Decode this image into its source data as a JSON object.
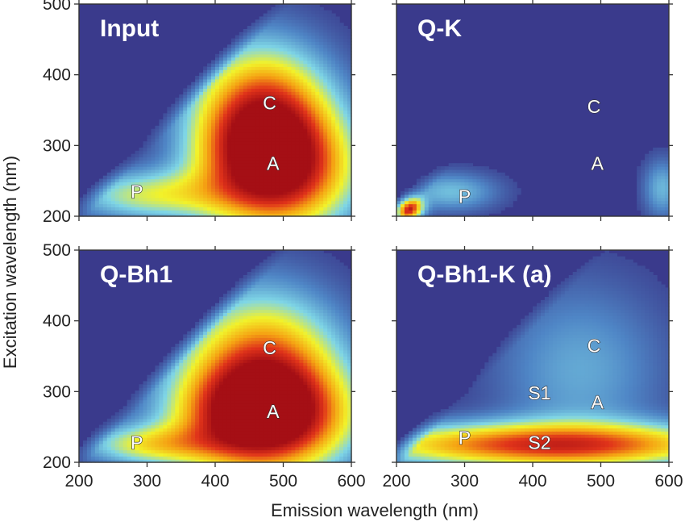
{
  "chart_data": {
    "type": "heatmap",
    "xlabel": "Emission wavelength (nm)",
    "ylabel": "Excitation wavelength (nm)",
    "xlim": [
      200,
      600
    ],
    "ylim": [
      200,
      500
    ],
    "xticks": [
      "200",
      "300",
      "400",
      "500",
      "600"
    ],
    "yticks": [
      "200",
      "300",
      "400",
      "500"
    ],
    "colormap": [
      "#3a3a8c",
      "#4f86c6",
      "#7fd6e6",
      "#f2f22a",
      "#f5a313",
      "#e0331a",
      "#a50f15"
    ],
    "background_color": "#3a3a8c",
    "panels": [
      {
        "title": "Input",
        "row": 0,
        "col": 0,
        "peaks": [
          {
            "label": "C",
            "x": 480,
            "y": 360
          },
          {
            "label": "A",
            "x": 485,
            "y": 275
          },
          {
            "label": "P",
            "x": 285,
            "y": 235
          }
        ],
        "intensity_blobs": [
          {
            "x": 470,
            "y": 330,
            "sx": 70,
            "sy": 75,
            "w": 1.0
          },
          {
            "x": 500,
            "y": 260,
            "sx": 80,
            "sy": 60,
            "w": 0.7
          },
          {
            "x": 300,
            "y": 230,
            "sx": 80,
            "sy": 25,
            "w": 0.45
          }
        ],
        "valid_min_emission_offset": 0
      },
      {
        "title": "Q-K",
        "row": 0,
        "col": 1,
        "peaks": [
          {
            "label": "C",
            "x": 490,
            "y": 355
          },
          {
            "label": "A",
            "x": 495,
            "y": 275
          },
          {
            "label": "P",
            "x": 300,
            "y": 228
          }
        ],
        "intensity_blobs": [
          {
            "x": 215,
            "y": 212,
            "sx": 15,
            "sy": 12,
            "w": 1.0
          },
          {
            "x": 280,
            "y": 235,
            "sx": 50,
            "sy": 20,
            "w": 0.3
          },
          {
            "x": 590,
            "y": 240,
            "sx": 20,
            "sy": 30,
            "w": 0.28
          }
        ],
        "valid_min_emission_offset": 0
      },
      {
        "title": "Q-Bh1",
        "row": 1,
        "col": 0,
        "peaks": [
          {
            "label": "C",
            "x": 480,
            "y": 362
          },
          {
            "label": "A",
            "x": 485,
            "y": 272
          },
          {
            "label": "P",
            "x": 285,
            "y": 228
          }
        ],
        "intensity_blobs": [
          {
            "x": 470,
            "y": 320,
            "sx": 80,
            "sy": 80,
            "w": 0.9
          },
          {
            "x": 470,
            "y": 260,
            "sx": 90,
            "sy": 50,
            "w": 0.8
          },
          {
            "x": 300,
            "y": 225,
            "sx": 70,
            "sy": 20,
            "w": 0.45
          }
        ],
        "valid_min_emission_offset": 0
      },
      {
        "title": "Q-Bh1-K (a)",
        "row": 1,
        "col": 1,
        "peaks": [
          {
            "label": "C",
            "x": 490,
            "y": 365
          },
          {
            "label": "A",
            "x": 495,
            "y": 285
          },
          {
            "label": "S1",
            "x": 410,
            "y": 298
          },
          {
            "label": "P",
            "x": 300,
            "y": 235
          },
          {
            "label": "S2",
            "x": 410,
            "y": 228
          }
        ],
        "intensity_blobs": [
          {
            "x": 420,
            "y": 225,
            "sx": 200,
            "sy": 22,
            "w": 0.85
          },
          {
            "x": 470,
            "y": 330,
            "sx": 90,
            "sy": 90,
            "w": 0.25
          }
        ],
        "valid_min_emission_offset": 0
      }
    ]
  }
}
